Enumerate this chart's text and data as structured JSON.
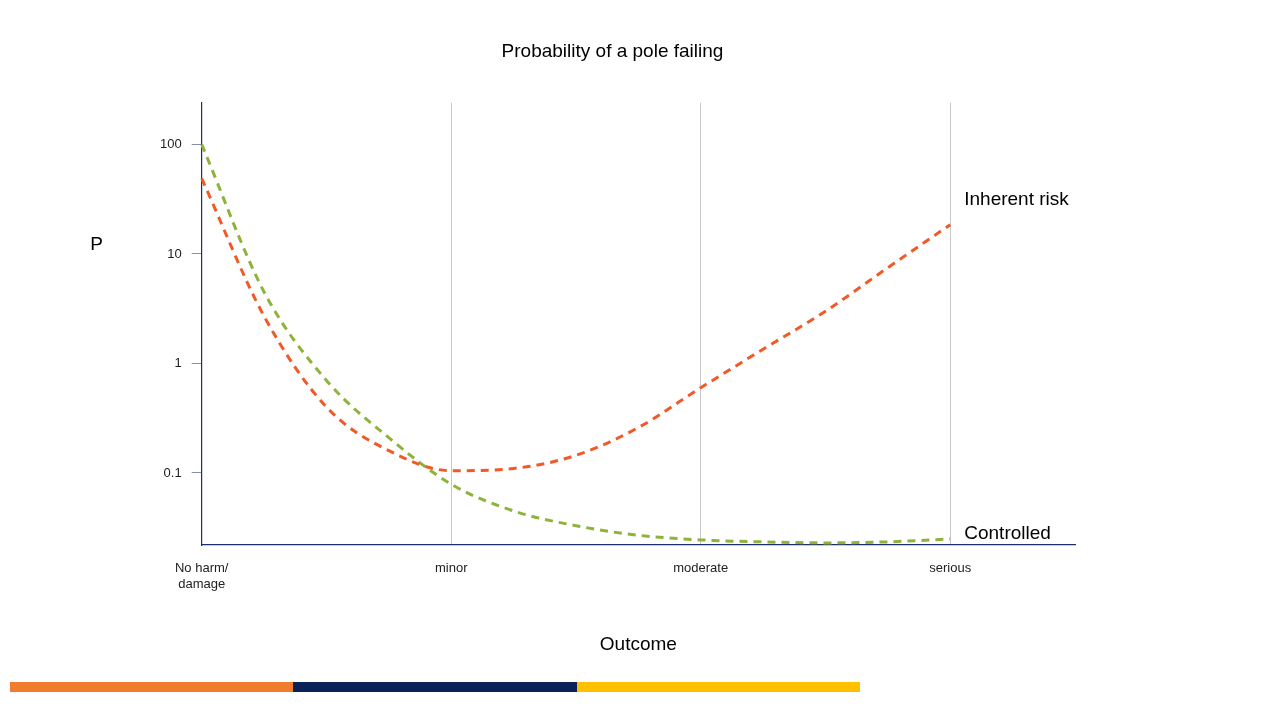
{
  "chart_data": {
    "type": "line",
    "title": "Probability of a pole failing",
    "xlabel": "Outcome",
    "ylabel": "P",
    "categories": [
      "No harm/\ndamage",
      null,
      null,
      null,
      "minor",
      null,
      null,
      null,
      "moderate",
      null,
      null,
      null,
      "serious",
      null,
      null
    ],
    "series": [
      {
        "name": "Inherent risk",
        "color": "#f05a28",
        "values": [
          49,
          2.7,
          0.4,
          0.16,
          0.105,
          0.11,
          0.145,
          0.26,
          0.6,
          1.35,
          3.0,
          7.5,
          18.5,
          null,
          null
        ]
      },
      {
        "name": "Controlled",
        "color": "#8db33a",
        "values": [
          100,
          4.5,
          0.7,
          0.21,
          0.079,
          0.045,
          0.033,
          0.027,
          0.0245,
          0.0235,
          0.023,
          0.0235,
          0.025,
          null,
          null
        ]
      }
    ],
    "ylim": [
      0.022,
      240
    ],
    "yticks": [
      0.1,
      1,
      10,
      100
    ],
    "log": "y",
    "grid": "x",
    "legend": false,
    "marker": "none",
    "line_style": "dashed"
  }
}
